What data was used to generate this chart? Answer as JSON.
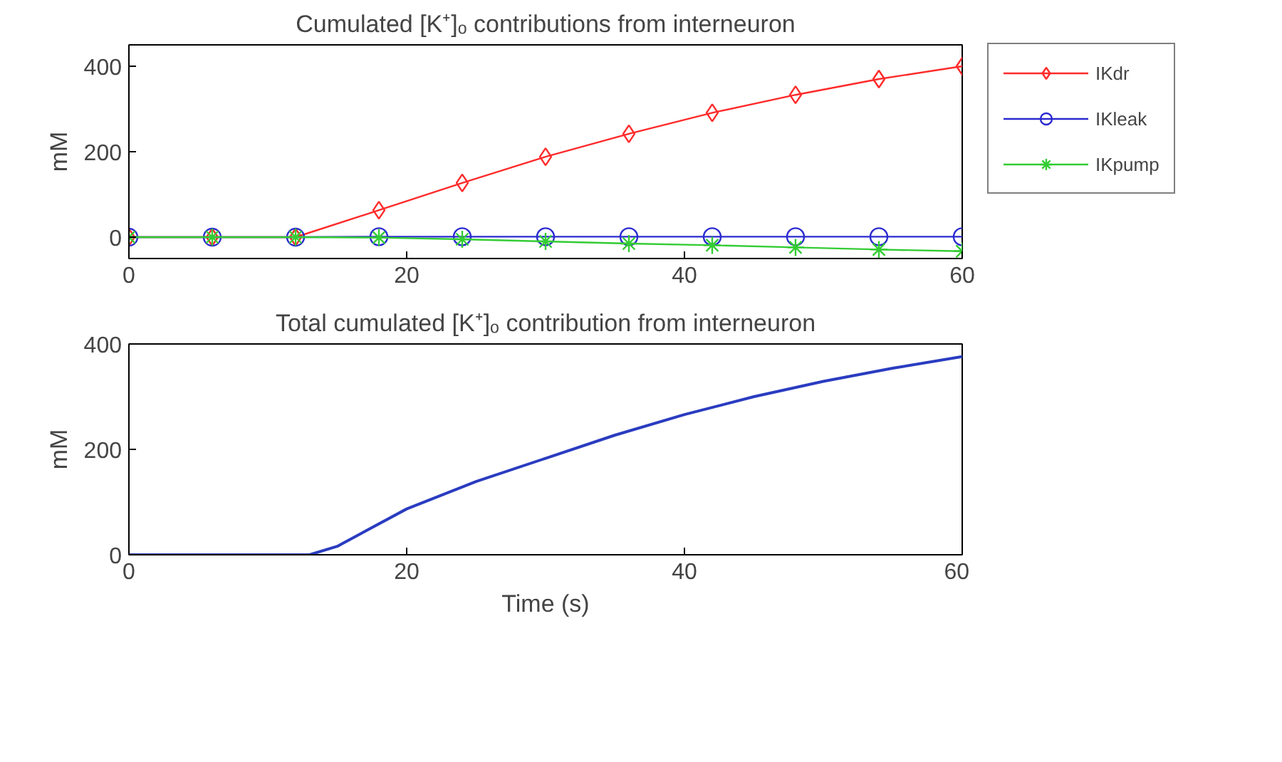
{
  "chart_data": [
    {
      "type": "line",
      "title": "Cumulated [K⁺]ₒ contributions from interneuron",
      "ylabel": "mM",
      "x": [
        0,
        6,
        12,
        18,
        24,
        30,
        36,
        42,
        48,
        54,
        60
      ],
      "xlim": [
        0,
        60
      ],
      "xticks": [
        0,
        20,
        40,
        60
      ],
      "ylim": [
        -50,
        450
      ],
      "yticks": [
        0,
        200,
        400
      ],
      "grid": false,
      "legend": "top right",
      "series": [
        {
          "name": "IKdr",
          "color": "#ff2a2a",
          "marker": "diamond",
          "values": [
            0,
            0,
            0,
            63,
            127,
            188,
            242,
            291,
            333,
            370,
            400
          ]
        },
        {
          "name": "IKleak",
          "color": "#2a2ad0",
          "marker": "circle",
          "values": [
            0,
            0,
            0,
            1,
            1,
            1,
            1,
            1,
            1,
            1,
            1
          ]
        },
        {
          "name": "IKpump",
          "color": "#33cc33",
          "marker": "cross",
          "values": [
            0,
            0,
            0,
            -1,
            -5,
            -10,
            -15,
            -19,
            -24,
            -29,
            -33
          ]
        }
      ]
    },
    {
      "type": "line",
      "title": "Total cumulated [K⁺]ₒ contribution from interneuron",
      "xlabel": "Time (s)",
      "ylabel": "mM",
      "xlim": [
        0,
        60
      ],
      "xticks": [
        0,
        20,
        40,
        60
      ],
      "ylim": [
        0,
        400
      ],
      "yticks": [
        0,
        200,
        400
      ],
      "grid": false,
      "legend": false,
      "series": [
        {
          "color": "#2a3cc0",
          "marker": "none",
          "x": [
            0,
            13,
            15,
            20,
            25,
            30,
            35,
            40,
            45,
            50,
            55,
            60
          ],
          "values": [
            0,
            0,
            16,
            87,
            139,
            183,
            227,
            266,
            300,
            329,
            354,
            376
          ]
        }
      ]
    }
  ]
}
